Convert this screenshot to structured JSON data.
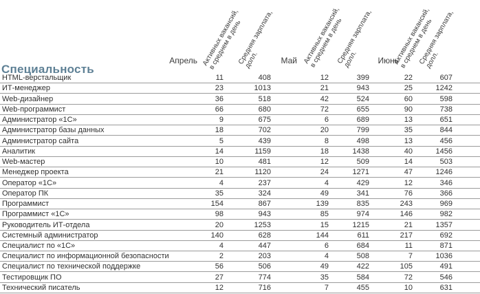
{
  "title": "Специальность",
  "months": [
    {
      "label": "Апрель"
    },
    {
      "label": "Май"
    },
    {
      "label": "Июнь"
    }
  ],
  "column_headers": {
    "vacancies_line1": "Активных вакансий,",
    "vacancies_line2": "в среднем в день",
    "salary_line1": "Средняя зарплата,",
    "salary_line2": "долл."
  },
  "colors": {
    "title": "#5e8095",
    "row_line": "#9b9b9b",
    "text": "#2f2f2f"
  },
  "chart_data": {
    "type": "table",
    "title": "Специальность",
    "columns": [
      "Апрель: активных вакансий, в среднем в день",
      "Апрель: средняя зарплата, долл.",
      "Май: активных вакансий, в среднем в день",
      "Май: средняя зарплата, долл.",
      "Июнь: активных вакансий, в среднем в день",
      "Июнь: средняя зарплата, долл."
    ]
  },
  "rows": [
    {
      "label": "HTML-верстальщик",
      "values": [
        11,
        408,
        12,
        399,
        22,
        607
      ]
    },
    {
      "label": "ИТ-менеджер",
      "values": [
        23,
        1013,
        21,
        943,
        25,
        1242
      ]
    },
    {
      "label": "Web-дизайнер",
      "values": [
        36,
        518,
        42,
        524,
        60,
        598
      ]
    },
    {
      "label": "Web-программист",
      "values": [
        66,
        680,
        72,
        655,
        90,
        738
      ]
    },
    {
      "label": "Администратор «1С»",
      "values": [
        9,
        675,
        6,
        689,
        13,
        651
      ]
    },
    {
      "label": "Администратор базы данных",
      "values": [
        18,
        702,
        20,
        799,
        35,
        844
      ]
    },
    {
      "label": "Администратор сайта",
      "values": [
        5,
        439,
        8,
        498,
        13,
        456
      ]
    },
    {
      "label": "Аналитик",
      "values": [
        14,
        1159,
        18,
        1438,
        40,
        1456
      ]
    },
    {
      "label": "Web-мастер",
      "values": [
        10,
        481,
        12,
        509,
        14,
        503
      ]
    },
    {
      "label": "Менеджер проекта",
      "values": [
        21,
        1120,
        24,
        1271,
        47,
        1246
      ]
    },
    {
      "label": "Оператор «1С»",
      "values": [
        4,
        237,
        4,
        429,
        12,
        346
      ]
    },
    {
      "label": "Оператор ПК",
      "values": [
        35,
        324,
        49,
        341,
        76,
        366
      ]
    },
    {
      "label": "Программист",
      "values": [
        154,
        867,
        139,
        835,
        243,
        969
      ]
    },
    {
      "label": "Программист «1С»",
      "values": [
        98,
        943,
        85,
        974,
        146,
        982
      ]
    },
    {
      "label": "Руководитель ИТ-отдела",
      "values": [
        20,
        1253,
        15,
        1215,
        21,
        1357
      ]
    },
    {
      "label": "Системный администратор",
      "values": [
        140,
        628,
        144,
        611,
        217,
        692
      ]
    },
    {
      "label": "Специалист по «1С»",
      "values": [
        4,
        447,
        6,
        684,
        11,
        871
      ]
    },
    {
      "label": "Специалист по информационной безопасности",
      "values": [
        2,
        203,
        4,
        508,
        7,
        1036
      ]
    },
    {
      "label": "Специалист по технической поддержке",
      "values": [
        56,
        506,
        49,
        422,
        105,
        491
      ]
    },
    {
      "label": "Тестировщик ПО",
      "values": [
        27,
        774,
        35,
        584,
        72,
        546
      ]
    },
    {
      "label": "Технический писатель",
      "values": [
        12,
        716,
        7,
        455,
        10,
        631
      ]
    }
  ]
}
